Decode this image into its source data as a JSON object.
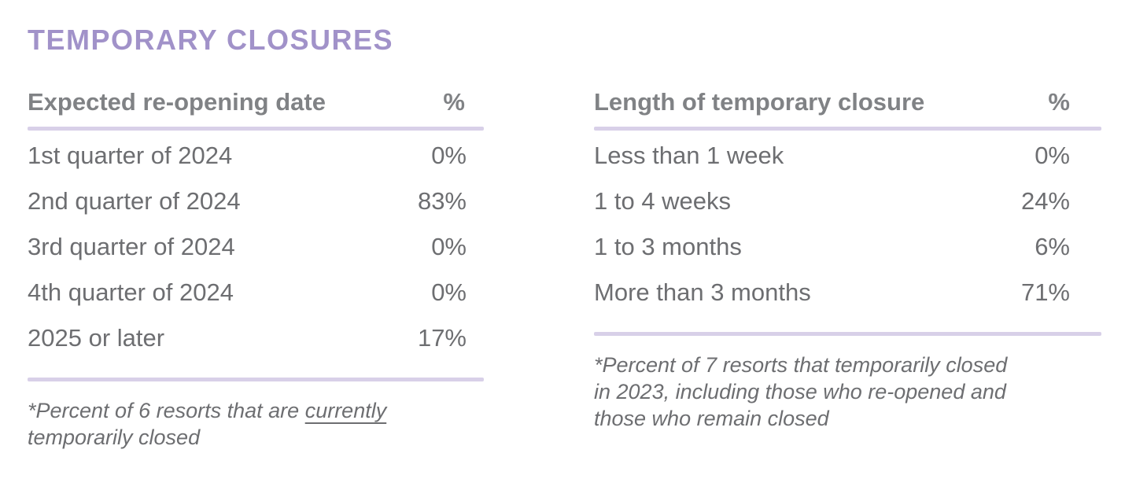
{
  "title": "TEMPORARY CLOSURES",
  "colors": {
    "title_purple": "#a192c9",
    "divider_lavender": "#d8d0e8",
    "header_gray": "#808285",
    "text_gray": "#6d6e71"
  },
  "left_table": {
    "header": {
      "label": "Expected re-opening date",
      "percent": "%"
    },
    "rows": [
      {
        "label": "1st quarter of 2024",
        "value": "0%"
      },
      {
        "label": "2nd quarter of 2024",
        "value": "83%"
      },
      {
        "label": "3rd quarter of 2024",
        "value": "0%"
      },
      {
        "label": "4th quarter of 2024",
        "value": "0%"
      },
      {
        "label": "2025 or later",
        "value": "17%"
      }
    ],
    "footnote": {
      "line1_prefix": "*Percent of 6 resorts that are ",
      "line1_underlined": "currently",
      "line2": "temporarily closed"
    }
  },
  "right_table": {
    "header": {
      "label": "Length of temporary closure",
      "percent": "%"
    },
    "rows": [
      {
        "label": "Less than 1 week",
        "value": "0%"
      },
      {
        "label": "1 to 4 weeks",
        "value": "24%"
      },
      {
        "label": "1 to 3 months",
        "value": "6%"
      },
      {
        "label": "More than 3 months",
        "value": "71%"
      }
    ],
    "footnote_lines": [
      "*Percent of 7 resorts that temporarily closed",
      "in 2023, including those who re-opened and",
      "those who remain closed"
    ]
  },
  "chart_data": [
    {
      "type": "table",
      "title": "Expected re-opening date",
      "columns": [
        "Expected re-opening date",
        "%"
      ],
      "categories": [
        "1st quarter of 2024",
        "2nd quarter of 2024",
        "3rd quarter of 2024",
        "4th quarter of 2024",
        "2025 or later"
      ],
      "values": [
        0,
        83,
        0,
        0,
        17
      ],
      "unit": "percent",
      "note": "*Percent of 6 resorts that are currently temporarily closed"
    },
    {
      "type": "table",
      "title": "Length of temporary closure",
      "columns": [
        "Length of temporary closure",
        "%"
      ],
      "categories": [
        "Less than 1 week",
        "1 to 4 weeks",
        "1 to 3 months",
        "More than 3 months"
      ],
      "values": [
        0,
        24,
        6,
        71
      ],
      "unit": "percent",
      "note": "*Percent of 7 resorts that temporarily closed in 2023, including those who re-opened and those who remain closed"
    }
  ]
}
